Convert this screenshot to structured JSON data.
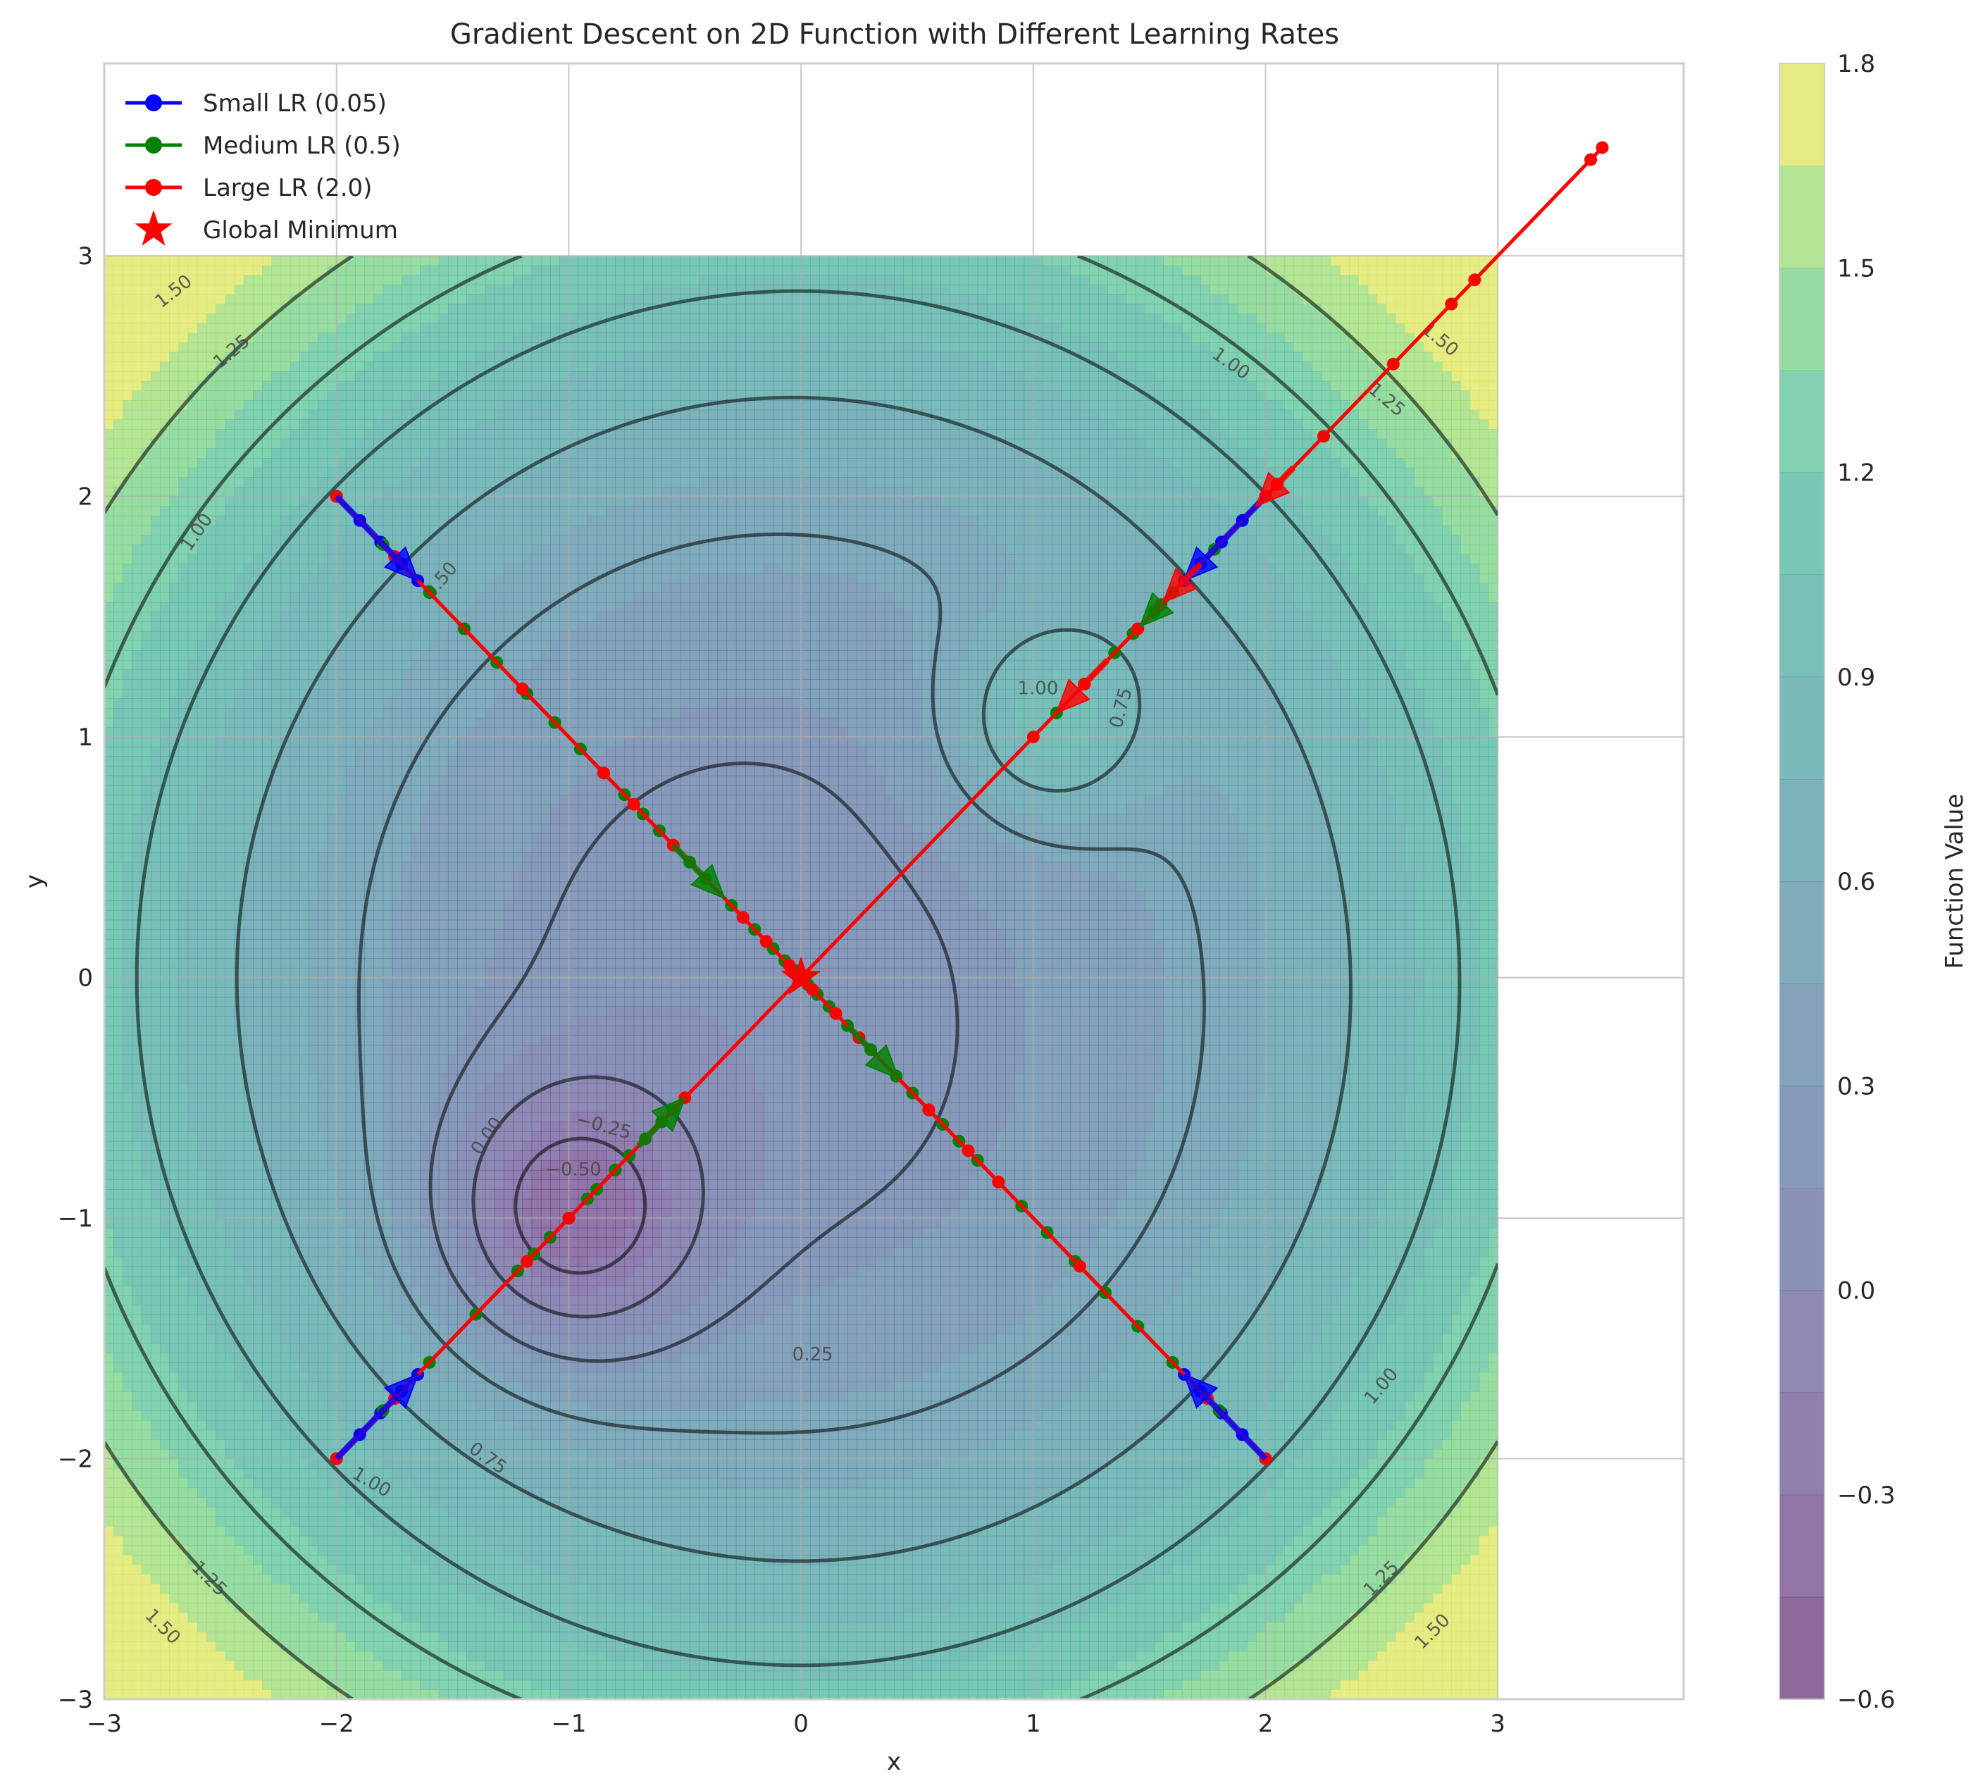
{
  "chart_data": {
    "type": "contour",
    "title": "Gradient Descent on 2D Function with Different Learning Rates",
    "xlabel": "x",
    "ylabel": "y",
    "xlim": [
      -3,
      3.8
    ],
    "ylim": [
      -3,
      3.8
    ],
    "contour_domain": {
      "x": [
        -3,
        3
      ],
      "y": [
        -3,
        3
      ]
    },
    "x_ticks": [
      {
        "v": -3,
        "label": "−3"
      },
      {
        "v": -2,
        "label": "−2"
      },
      {
        "v": -1,
        "label": "−1"
      },
      {
        "v": 0,
        "label": "0"
      },
      {
        "v": 1,
        "label": "1"
      },
      {
        "v": 2,
        "label": "2"
      },
      {
        "v": 3,
        "label": "3"
      }
    ],
    "y_ticks": [
      {
        "v": -3,
        "label": "−3"
      },
      {
        "v": -2,
        "label": "−2"
      },
      {
        "v": -1,
        "label": "−1"
      },
      {
        "v": 0,
        "label": "0"
      },
      {
        "v": 1,
        "label": "1"
      },
      {
        "v": 2,
        "label": "2"
      },
      {
        "v": 3,
        "label": "3"
      }
    ],
    "grid": true,
    "colormap": "viridis",
    "colorbar": {
      "label": "Function Value",
      "range": [
        -0.6,
        1.8
      ],
      "ticks": [
        {
          "v": -0.6,
          "label": "−0.6"
        },
        {
          "v": -0.3,
          "label": "−0.3"
        },
        {
          "v": 0.0,
          "label": "0.0"
        },
        {
          "v": 0.3,
          "label": "0.3"
        },
        {
          "v": 0.6,
          "label": "0.6"
        },
        {
          "v": 0.9,
          "label": "0.9"
        },
        {
          "v": 1.2,
          "label": "1.2"
        },
        {
          "v": 1.5,
          "label": "1.5"
        },
        {
          "v": 1.8,
          "label": "1.8"
        }
      ]
    },
    "contour_lines": [
      {
        "level": -0.5,
        "label": "−0.50",
        "dashed": true
      },
      {
        "level": -0.25,
        "label": "−0.25",
        "dashed": true
      },
      {
        "level": 0.0,
        "label": "0.00",
        "dashed": false
      },
      {
        "level": 0.25,
        "label": "0.25",
        "dashed": false
      },
      {
        "level": 0.5,
        "label": "0.50",
        "dashed": false
      },
      {
        "level": 0.75,
        "label": "0.75",
        "dashed": false
      },
      {
        "level": 1.0,
        "label": "1.00",
        "dashed": false
      },
      {
        "level": 1.25,
        "label": "1.25",
        "dashed": false
      },
      {
        "level": 1.5,
        "label": "1.50",
        "dashed": false
      }
    ],
    "contour_labels": [
      {
        "text": "1.50",
        "x": -2.7,
        "y": 2.85,
        "rotate": -38
      },
      {
        "text": "1.25",
        "x": -2.45,
        "y": 2.6,
        "rotate": -40
      },
      {
        "text": "1.00",
        "x": -2.6,
        "y": 1.85,
        "rotate": -55
      },
      {
        "text": "0.50",
        "x": -1.55,
        "y": 1.65,
        "rotate": -50
      },
      {
        "text": "1.00",
        "x": 1.85,
        "y": 2.55,
        "rotate": 35
      },
      {
        "text": "1.50",
        "x": 2.75,
        "y": 2.65,
        "rotate": 40
      },
      {
        "text": "1.25",
        "x": 2.52,
        "y": 2.4,
        "rotate": 40
      },
      {
        "text": "1.00",
        "x": 1.02,
        "y": 1.2,
        "rotate": 0
      },
      {
        "text": "0.75",
        "x": 1.38,
        "y": 1.12,
        "rotate": -75
      },
      {
        "text": "0.00",
        "x": -1.35,
        "y": -0.66,
        "rotate": -55
      },
      {
        "text": "−0.25",
        "x": -0.85,
        "y": -0.62,
        "rotate": 15
      },
      {
        "text": "−0.50",
        "x": -0.98,
        "y": -0.8,
        "rotate": 0
      },
      {
        "text": "0.25",
        "x": 0.05,
        "y": -1.57,
        "rotate": 0
      },
      {
        "text": "0.75",
        "x": -1.35,
        "y": -2.0,
        "rotate": 35
      },
      {
        "text": "1.00",
        "x": -1.85,
        "y": -2.1,
        "rotate": 30
      },
      {
        "text": "1.25",
        "x": -2.55,
        "y": -2.5,
        "rotate": 45
      },
      {
        "text": "1.50",
        "x": -2.75,
        "y": -2.7,
        "rotate": 45
      },
      {
        "text": "1.00",
        "x": 2.5,
        "y": -1.7,
        "rotate": -50
      },
      {
        "text": "1.25",
        "x": 2.5,
        "y": -2.5,
        "rotate": -45
      },
      {
        "text": "1.50",
        "x": 2.72,
        "y": -2.72,
        "rotate": -45
      }
    ],
    "series": [
      {
        "name": "Small LR (0.05)",
        "color": "#0000ff",
        "paths": [
          [
            [
              -2,
              2
            ],
            [
              -1.9,
              1.9
            ],
            [
              -1.81,
              1.81
            ],
            [
              -1.72,
              1.72
            ],
            [
              -1.65,
              1.65
            ]
          ],
          [
            [
              2,
              2
            ],
            [
              1.9,
              1.9
            ],
            [
              1.81,
              1.81
            ],
            [
              1.72,
              1.72
            ],
            [
              1.65,
              1.65
            ]
          ],
          [
            [
              -2,
              -2
            ],
            [
              -1.9,
              -1.9
            ],
            [
              -1.81,
              -1.81
            ],
            [
              -1.72,
              -1.72
            ],
            [
              -1.65,
              -1.65
            ]
          ],
          [
            [
              2,
              -2
            ],
            [
              1.9,
              -1.9
            ],
            [
              1.81,
              -1.81
            ],
            [
              1.72,
              -1.72
            ],
            [
              1.65,
              -1.65
            ]
          ]
        ]
      },
      {
        "name": "Medium LR (0.5)",
        "color": "#008000",
        "paths": [
          [
            [
              -2,
              2
            ],
            [
              -1.8,
              1.8
            ],
            [
              -1.6,
              1.6
            ],
            [
              -1.45,
              1.45
            ],
            [
              -1.31,
              1.31
            ],
            [
              -1.18,
              1.18
            ],
            [
              -1.06,
              1.06
            ],
            [
              -0.95,
              0.95
            ],
            [
              -0.85,
              0.85
            ],
            [
              -0.76,
              0.76
            ],
            [
              -0.68,
              0.68
            ],
            [
              -0.61,
              0.61
            ],
            [
              -0.55,
              0.55
            ],
            [
              -0.48,
              0.48
            ],
            [
              -0.41,
              0.41
            ],
            [
              -0.3,
              0.3
            ],
            [
              -0.2,
              0.2
            ],
            [
              -0.12,
              0.12
            ],
            [
              -0.07,
              0.07
            ],
            [
              -0.03,
              0.03
            ],
            [
              0,
              0
            ]
          ],
          [
            [
              2,
              -2
            ],
            [
              1.8,
              -1.8
            ],
            [
              1.6,
              -1.6
            ],
            [
              1.45,
              -1.45
            ],
            [
              1.31,
              -1.31
            ],
            [
              1.18,
              -1.18
            ],
            [
              1.06,
              -1.06
            ],
            [
              0.95,
              -0.95
            ],
            [
              0.85,
              -0.85
            ],
            [
              0.76,
              -0.76
            ],
            [
              0.68,
              -0.68
            ],
            [
              0.61,
              -0.61
            ],
            [
              0.55,
              -0.55
            ],
            [
              0.48,
              -0.48
            ],
            [
              0.41,
              -0.41
            ],
            [
              0.3,
              -0.3
            ],
            [
              0.2,
              -0.2
            ],
            [
              0.12,
              -0.12
            ],
            [
              0.07,
              -0.07
            ],
            [
              0.03,
              -0.03
            ],
            [
              0,
              0
            ]
          ],
          [
            [
              2,
              2
            ],
            [
              1.78,
              1.78
            ],
            [
              1.6,
              1.6
            ],
            [
              1.52,
              1.52
            ],
            [
              1.43,
              1.43
            ],
            [
              1.35,
              1.35
            ],
            [
              1.22,
              1.22
            ],
            [
              1.1,
              1.1
            ]
          ],
          [
            [
              -2,
              -2
            ],
            [
              -1.8,
              -1.8
            ],
            [
              -1.6,
              -1.6
            ],
            [
              -1.4,
              -1.4
            ],
            [
              -1.22,
              -1.22
            ],
            [
              -1.15,
              -1.15
            ],
            [
              -1.08,
              -1.08
            ],
            [
              -1.0,
              -1.0
            ],
            [
              -0.92,
              -0.92
            ],
            [
              -0.88,
              -0.88
            ],
            [
              -0.8,
              -0.8
            ],
            [
              -0.74,
              -0.74
            ],
            [
              -0.67,
              -0.67
            ],
            [
              -0.6,
              -0.6
            ],
            [
              -0.55,
              -0.55
            ]
          ]
        ]
      },
      {
        "name": "Large LR (2.0)",
        "color": "#ff0000",
        "paths": [
          [
            [
              -2,
              2
            ],
            [
              -1.75,
              1.75
            ],
            [
              -1.2,
              1.2
            ],
            [
              -0.85,
              0.85
            ],
            [
              -0.72,
              0.72
            ],
            [
              -0.55,
              0.55
            ],
            [
              -0.25,
              0.25
            ],
            [
              -0.15,
              0.15
            ],
            [
              -0.05,
              0.05
            ],
            [
              0,
              0
            ]
          ],
          [
            [
              2,
              -2
            ],
            [
              1.75,
              -1.75
            ],
            [
              1.2,
              -1.2
            ],
            [
              0.85,
              -0.85
            ],
            [
              0.72,
              -0.72
            ],
            [
              0.55,
              -0.55
            ],
            [
              0.25,
              -0.25
            ],
            [
              0.15,
              -0.15
            ],
            [
              0.05,
              -0.05
            ],
            [
              0,
              0
            ]
          ],
          [
            [
              -2,
              -2
            ],
            [
              -1.75,
              -1.75
            ],
            [
              -1.18,
              -1.18
            ],
            [
              -1.0,
              -1.0
            ],
            [
              -0.5,
              -0.5
            ],
            [
              0,
              0
            ],
            [
              1.0,
              1.0
            ],
            [
              1.22,
              1.22
            ],
            [
              1.45,
              1.45
            ],
            [
              1.55,
              1.55
            ],
            [
              2.05,
              2.05
            ],
            [
              2.25,
              2.25
            ],
            [
              2.55,
              2.55
            ],
            [
              2.8,
              2.8
            ],
            [
              2.9,
              2.9
            ],
            [
              3.4,
              3.4
            ],
            [
              3.45,
              3.45
            ]
          ],
          [
            [
              2,
              2
            ],
            [
              2.05,
              2.05
            ]
          ]
        ]
      }
    ],
    "arrows": [
      {
        "series": 0,
        "x": -2.0,
        "y": 2.0,
        "dx": 0.35,
        "dy": -0.35,
        "color": "#0000ff"
      },
      {
        "series": 0,
        "x": 2.0,
        "y": 2.0,
        "dx": -0.35,
        "dy": -0.35,
        "color": "#0000ff"
      },
      {
        "series": 0,
        "x": -2.0,
        "y": -2.0,
        "dx": 0.35,
        "dy": 0.35,
        "color": "#0000ff"
      },
      {
        "series": 0,
        "x": 2.0,
        "y": -2.0,
        "dx": -0.35,
        "dy": 0.35,
        "color": "#0000ff"
      },
      {
        "series": 1,
        "x": -0.55,
        "y": 0.55,
        "dx": 0.22,
        "dy": -0.22,
        "color": "#008000"
      },
      {
        "series": 1,
        "x": 0.2,
        "y": -0.2,
        "dx": 0.22,
        "dy": -0.22,
        "color": "#008000"
      },
      {
        "series": 1,
        "x": -0.7,
        "y": -0.7,
        "dx": 0.2,
        "dy": 0.2,
        "color": "#008000"
      },
      {
        "series": 1,
        "x": 1.62,
        "y": 1.62,
        "dx": -0.16,
        "dy": -0.16,
        "color": "#008000"
      },
      {
        "series": 2,
        "x": 2.12,
        "y": 2.12,
        "dx": -0.16,
        "dy": -0.16,
        "color": "#ff0000"
      },
      {
        "series": 2,
        "x": 1.72,
        "y": 1.72,
        "dx": -0.16,
        "dy": -0.16,
        "color": "#ff0000"
      },
      {
        "series": 2,
        "x": 1.32,
        "y": 1.32,
        "dx": -0.22,
        "dy": -0.22,
        "color": "#ff0000"
      }
    ],
    "global_minimum": {
      "name": "Global Minimum",
      "x": 0,
      "y": 0,
      "color": "#ff0000",
      "marker": "star"
    },
    "legend": {
      "placement": "top-left",
      "entries": [
        {
          "label": "Small LR (0.05)",
          "color": "#0000ff",
          "marker": "line-dot"
        },
        {
          "label": "Medium LR (0.5)",
          "color": "#008000",
          "marker": "line-dot"
        },
        {
          "label": "Large LR (2.0)",
          "color": "#ff0000",
          "marker": "line-dot"
        },
        {
          "label": "Global Minimum",
          "color": "#ff0000",
          "marker": "star"
        }
      ]
    }
  }
}
